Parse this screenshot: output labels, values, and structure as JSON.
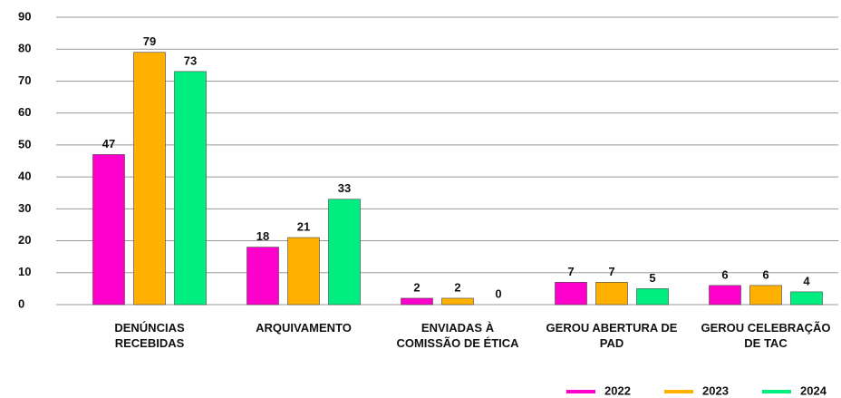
{
  "chart_data": {
    "type": "bar",
    "categories": [
      "DENÚNCIAS RECEBIDAS",
      "ARQUIVAMENTO",
      "ENVIADAS À COMISSÃO DE ÉTICA",
      "GEROU ABERTURA DE PAD",
      "GEROU CELEBRAÇÃO DE TAC"
    ],
    "series": [
      {
        "name": "2022",
        "color": "#ff00cc",
        "values": [
          47,
          18,
          2,
          7,
          6
        ]
      },
      {
        "name": "2023",
        "color": "#ffb000",
        "values": [
          79,
          21,
          2,
          7,
          6
        ]
      },
      {
        "name": "2024",
        "color": "#00ee80",
        "values": [
          73,
          33,
          0,
          5,
          4
        ]
      }
    ],
    "ylim": [
      0,
      90
    ],
    "yticks": [
      0,
      10,
      20,
      30,
      40,
      50,
      60,
      70,
      80,
      90
    ],
    "grid": true,
    "legend": "bottom-right"
  }
}
